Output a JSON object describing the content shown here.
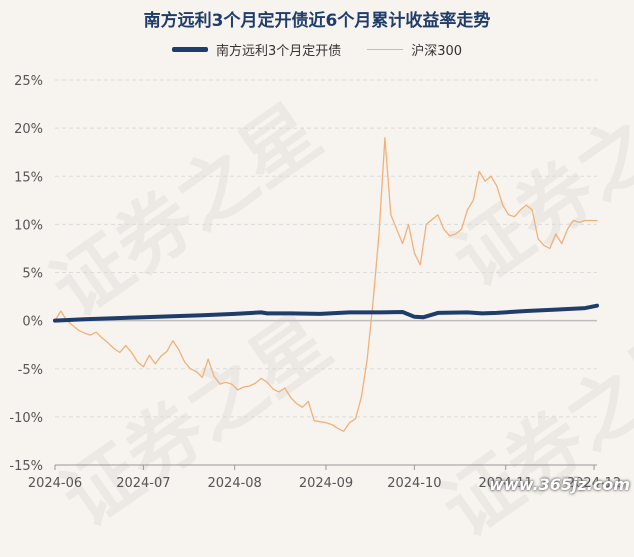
{
  "header": {
    "title": "南方远利3个月定开债近6个月累计收益率走势"
  },
  "watermark": {
    "text": "证券之星",
    "site": "www.365jz.com"
  },
  "chart_data": {
    "type": "line",
    "title": "南方远利3个月定开债近6个月累计收益率走势",
    "ylim": [
      -15,
      25
    ],
    "y_ticks": [
      "25%",
      "20%",
      "15%",
      "10%",
      "5%",
      "0%",
      "-5%",
      "-10%",
      "-15%"
    ],
    "y_tick_values": [
      25,
      20,
      15,
      10,
      5,
      0,
      -5,
      -10,
      -15
    ],
    "x_ticks": [
      "2024-06",
      "2024-07",
      "2024-08",
      "2024-09",
      "2024-10",
      "2024-11",
      "2024-12"
    ],
    "x_tick_pos": [
      0,
      30,
      61,
      92,
      122,
      153,
      183
    ],
    "x_range": [
      0,
      184
    ],
    "grid": true,
    "legend_position": "top-center",
    "series": [
      {
        "name": "南方远利3个月定开债",
        "color": "#1f3d6b",
        "x": [
          0,
          10,
          20,
          30,
          40,
          50,
          61,
          70,
          72,
          80,
          90,
          100,
          110,
          118,
          122,
          125,
          130,
          140,
          145,
          150,
          160,
          170,
          180,
          184
        ],
        "values": [
          0.0,
          0.15,
          0.25,
          0.35,
          0.45,
          0.55,
          0.7,
          0.85,
          0.75,
          0.75,
          0.7,
          0.85,
          0.85,
          0.9,
          0.4,
          0.35,
          0.8,
          0.85,
          0.75,
          0.8,
          1.0,
          1.15,
          1.3,
          1.55
        ]
      },
      {
        "name": "沪深300",
        "color": "#f0b27a",
        "x": [
          0,
          2,
          4,
          6,
          8,
          10,
          12,
          14,
          16,
          18,
          20,
          22,
          24,
          26,
          28,
          30,
          32,
          34,
          36,
          38,
          40,
          42,
          44,
          46,
          48,
          50,
          52,
          54,
          56,
          58,
          60,
          62,
          64,
          66,
          68,
          70,
          72,
          74,
          76,
          78,
          80,
          82,
          84,
          86,
          88,
          90,
          92,
          94,
          96,
          98,
          100,
          102,
          104,
          106,
          108,
          110,
          112,
          114,
          116,
          118,
          120,
          122,
          124,
          126,
          128,
          130,
          132,
          134,
          136,
          138,
          140,
          142,
          144,
          146,
          148,
          150,
          152,
          154,
          156,
          158,
          160,
          162,
          164,
          166,
          168,
          170,
          172,
          174,
          176,
          178,
          180,
          182,
          184
        ],
        "values": [
          0.0,
          1.0,
          0.0,
          -0.5,
          -1.0,
          -1.3,
          -1.5,
          -1.2,
          -1.8,
          -2.3,
          -2.9,
          -3.3,
          -2.6,
          -3.3,
          -4.3,
          -4.8,
          -3.6,
          -4.5,
          -3.7,
          -3.2,
          -2.1,
          -3.0,
          -4.3,
          -5.0,
          -5.3,
          -5.9,
          -4.0,
          -5.8,
          -6.6,
          -6.4,
          -6.6,
          -7.2,
          -6.9,
          -6.8,
          -6.5,
          -6.0,
          -6.4,
          -7.1,
          -7.4,
          -7.0,
          -8.0,
          -8.6,
          -9.0,
          -8.4,
          -10.4,
          -10.5,
          -10.6,
          -10.8,
          -11.2,
          -11.5,
          -10.6,
          -10.2,
          -8.0,
          -4.0,
          2.0,
          9.0,
          19.0,
          11.0,
          9.5,
          8.0,
          10.0,
          7.0,
          5.8,
          10.0,
          10.5,
          11.0,
          9.5,
          8.8,
          9.0,
          9.5,
          11.5,
          12.5,
          15.5,
          14.5,
          15.0,
          14.0,
          12.0,
          11.0,
          10.8,
          11.5,
          12.0,
          11.5,
          8.5,
          7.8,
          7.5,
          9.0,
          8.0,
          9.5,
          10.4,
          10.2,
          10.4,
          10.4,
          10.4
        ]
      }
    ]
  }
}
